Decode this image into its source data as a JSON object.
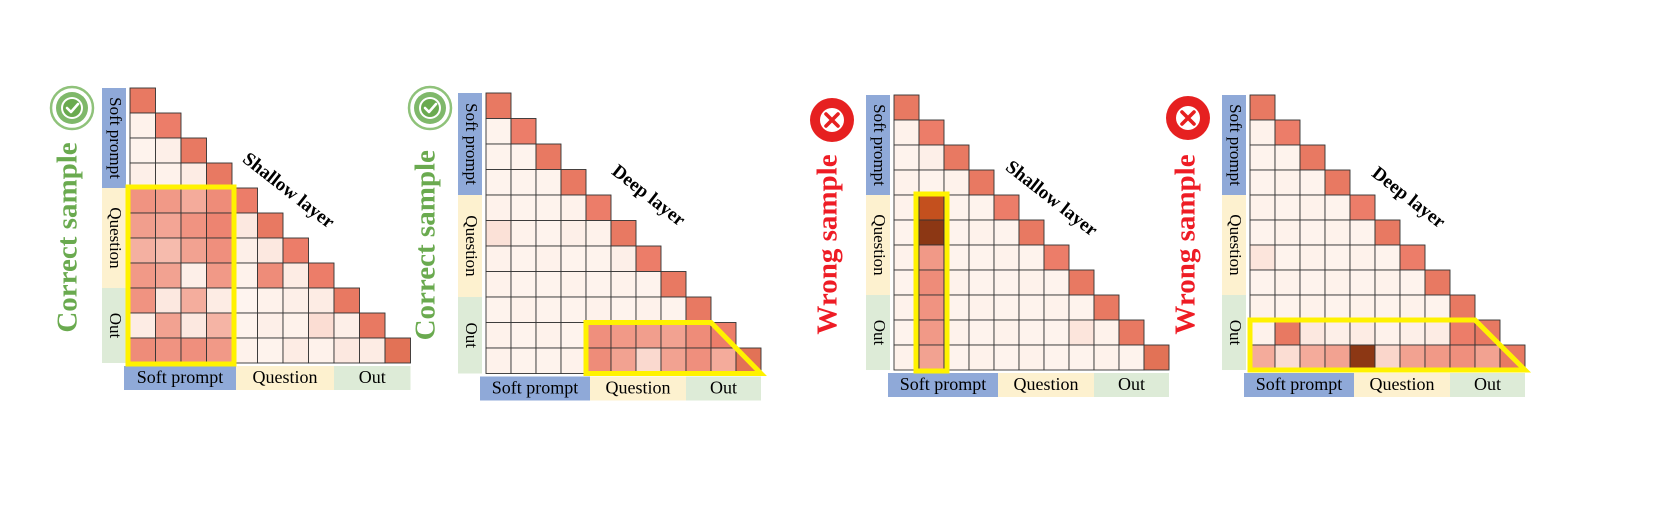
{
  "labels": {
    "soft_prompt": "Soft prompt",
    "question": "Question",
    "out": "Out",
    "shallow_layer": "Shallow layer",
    "deep_layer": "Deep layer",
    "correct_sample": "Correct sample",
    "wrong_sample": "Wrong sample"
  },
  "colors": {
    "soft_prompt_bg": "#8FA9D8",
    "question_bg": "#FDF1CF",
    "out_bg": "#DDEBD7",
    "correct_green": "#6AAA4F",
    "wrong_red": "#EE1C25",
    "highlight_yellow": "#FFF200",
    "grid_line": "#333333"
  },
  "panels": [
    {
      "id": "correct-shallow",
      "side_label": "Correct sample",
      "side_color": "#6AAA4F",
      "badge": "check-icon",
      "layer_label": "Shallow layer",
      "grid_size": 11,
      "groups": [
        4,
        4,
        3
      ],
      "highlight": "column-block",
      "diag_level": 0.7,
      "rows": [
        [
          0.72
        ],
        [
          0.06,
          0.7
        ],
        [
          0.05,
          0.08,
          0.72
        ],
        [
          0.08,
          0.06,
          0.1,
          0.72
        ],
        [
          0.58,
          0.55,
          0.45,
          0.62,
          0.7
        ],
        [
          0.52,
          0.48,
          0.58,
          0.66,
          0.12,
          0.72
        ],
        [
          0.42,
          0.36,
          0.5,
          0.6,
          0.08,
          0.12,
          0.7
        ],
        [
          0.55,
          0.5,
          0.08,
          0.55,
          0.06,
          0.62,
          0.1,
          0.7
        ],
        [
          0.58,
          0.12,
          0.44,
          0.1,
          0.04,
          0.06,
          0.08,
          0.1,
          0.72
        ],
        [
          0.1,
          0.5,
          0.12,
          0.4,
          0.05,
          0.08,
          0.06,
          0.18,
          0.08,
          0.72
        ],
        [
          0.62,
          0.58,
          0.6,
          0.55,
          0.06,
          0.05,
          0.1,
          0.06,
          0.12,
          0.1,
          0.75
        ]
      ]
    },
    {
      "id": "correct-deep",
      "side_label": "Correct sample",
      "side_color": "#6AAA4F",
      "badge": "check-icon",
      "layer_label": "Deep layer",
      "grid_size": 11,
      "groups": [
        4,
        4,
        3
      ],
      "highlight": "row-trapezoid",
      "diag_level": 0.7,
      "rows": [
        [
          0.72
        ],
        [
          0.05,
          0.7
        ],
        [
          0.05,
          0.05,
          0.72
        ],
        [
          0.05,
          0.05,
          0.05,
          0.72
        ],
        [
          0.06,
          0.05,
          0.05,
          0.06,
          0.7
        ],
        [
          0.16,
          0.06,
          0.05,
          0.08,
          0.06,
          0.72
        ],
        [
          0.06,
          0.05,
          0.06,
          0.05,
          0.05,
          0.08,
          0.7
        ],
        [
          0.06,
          0.05,
          0.05,
          0.06,
          0.05,
          0.06,
          0.05,
          0.72
        ],
        [
          0.05,
          0.06,
          0.05,
          0.05,
          0.06,
          0.05,
          0.06,
          0.05,
          0.72
        ],
        [
          0.06,
          0.05,
          0.06,
          0.05,
          0.6,
          0.55,
          0.52,
          0.5,
          0.62,
          0.7
        ],
        [
          0.06,
          0.05,
          0.05,
          0.06,
          0.62,
          0.5,
          0.2,
          0.5,
          0.6,
          0.45,
          0.75
        ]
      ]
    },
    {
      "id": "wrong-shallow",
      "side_label": "Wrong sample",
      "side_color": "#EE1C25",
      "badge": "cross-icon",
      "layer_label": "Shallow layer",
      "grid_size": 11,
      "groups": [
        4,
        4,
        3
      ],
      "highlight": "single-column",
      "diag_level": 0.7,
      "rows": [
        [
          0.72
        ],
        [
          0.06,
          0.7
        ],
        [
          0.05,
          0.08,
          0.72
        ],
        [
          0.06,
          0.05,
          0.06,
          0.72
        ],
        [
          0.06,
          0.9,
          0.05,
          0.05,
          0.7
        ],
        [
          0.05,
          1.0,
          0.05,
          0.06,
          0.05,
          0.72
        ],
        [
          0.06,
          0.55,
          0.05,
          0.05,
          0.06,
          0.05,
          0.7
        ],
        [
          0.05,
          0.62,
          0.06,
          0.05,
          0.05,
          0.06,
          0.05,
          0.72
        ],
        [
          0.06,
          0.58,
          0.05,
          0.06,
          0.05,
          0.05,
          0.06,
          0.05,
          0.72
        ],
        [
          0.05,
          0.55,
          0.06,
          0.05,
          0.06,
          0.05,
          0.05,
          0.14,
          0.06,
          0.72
        ],
        [
          0.06,
          0.5,
          0.05,
          0.06,
          0.05,
          0.06,
          0.05,
          0.05,
          0.06,
          0.05,
          0.75
        ]
      ]
    },
    {
      "id": "wrong-deep",
      "side_label": "Wrong sample",
      "side_color": "#EE1C25",
      "badge": "cross-icon",
      "layer_label": "Deep layer",
      "grid_size": 11,
      "groups": [
        4,
        4,
        3
      ],
      "highlight": "row-trapezoid",
      "diag_level": 0.7,
      "rows": [
        [
          0.72
        ],
        [
          0.06,
          0.7
        ],
        [
          0.05,
          0.05,
          0.72
        ],
        [
          0.05,
          0.06,
          0.05,
          0.72
        ],
        [
          0.06,
          0.05,
          0.06,
          0.05,
          0.7
        ],
        [
          0.05,
          0.06,
          0.05,
          0.06,
          0.05,
          0.72
        ],
        [
          0.14,
          0.05,
          0.06,
          0.05,
          0.06,
          0.05,
          0.7
        ],
        [
          0.05,
          0.06,
          0.05,
          0.06,
          0.05,
          0.06,
          0.05,
          0.72
        ],
        [
          0.06,
          0.05,
          0.06,
          0.05,
          0.06,
          0.05,
          0.06,
          0.05,
          0.72
        ],
        [
          0.06,
          0.72,
          0.12,
          0.08,
          0.1,
          0.06,
          0.08,
          0.1,
          0.7,
          0.72
        ],
        [
          0.45,
          0.18,
          0.45,
          0.5,
          1.0,
          0.22,
          0.5,
          0.55,
          0.6,
          0.5,
          0.72
        ]
      ]
    }
  ]
}
